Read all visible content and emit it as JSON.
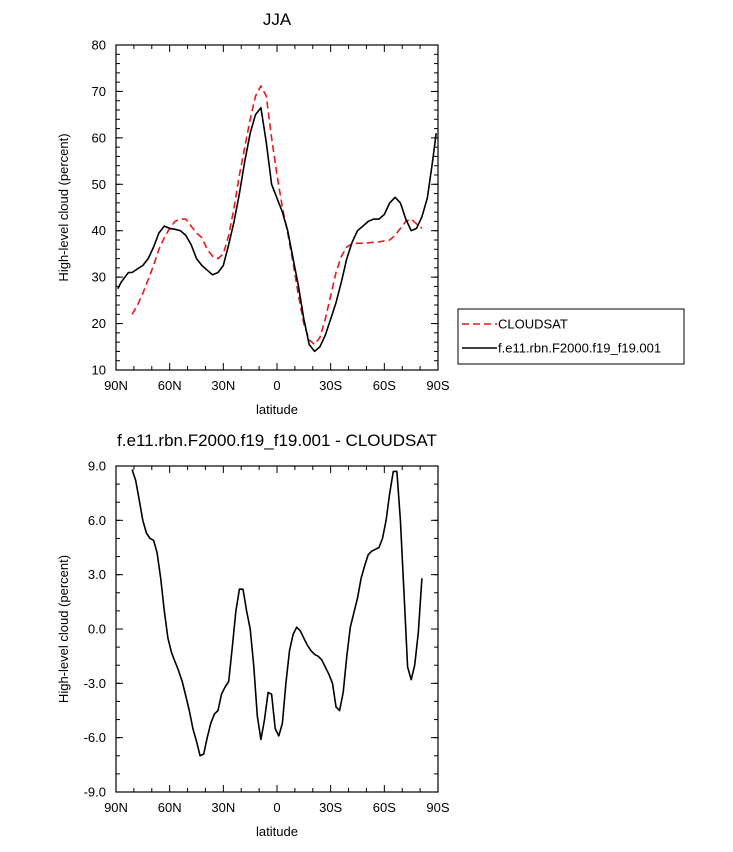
{
  "chart_data": [
    {
      "type": "line",
      "title": "JJA",
      "xlabel": "latitude",
      "ylabel": "High-level cloud (percent)",
      "xlim": [
        90,
        -90
      ],
      "ylim": [
        10,
        80
      ],
      "x_tick_values": [
        90,
        60,
        30,
        0,
        -30,
        -60,
        -90
      ],
      "x_tick_labels": [
        "90N",
        "60N",
        "30N",
        "0",
        "30S",
        "60S",
        "90S"
      ],
      "y_tick_values": [
        10,
        20,
        30,
        40,
        50,
        60,
        70,
        80
      ],
      "y_tick_labels": [
        "10",
        "20",
        "30",
        "40",
        "50",
        "60",
        "70",
        "80"
      ],
      "legend": "right",
      "series": [
        {
          "name": "CLOUDSAT",
          "color": "#e41a1c",
          "style": "dashed",
          "x": [
            81,
            78,
            75,
            72,
            69,
            66,
            63,
            60,
            57,
            54,
            51,
            48,
            45,
            42,
            39,
            36,
            33,
            30,
            27,
            24,
            21,
            18,
            15,
            12,
            9,
            6,
            3,
            0,
            -3,
            -6,
            -9,
            -12,
            -15,
            -18,
            -21,
            -24,
            -27,
            -30,
            -33,
            -36,
            -39,
            -42,
            -45,
            -48,
            -51,
            -54,
            -57,
            -60,
            -63,
            -66,
            -69,
            -72,
            -75,
            -78,
            -81
          ],
          "y": [
            22,
            24,
            26.5,
            29.5,
            32.5,
            36,
            38.5,
            40.5,
            42,
            42.5,
            42.5,
            41,
            39.5,
            38.5,
            36,
            34.5,
            34,
            35,
            39,
            45,
            52,
            58,
            64,
            69,
            71.2,
            69,
            60,
            52,
            45,
            39.5,
            33,
            26,
            20,
            16.5,
            15.5,
            17,
            21,
            26,
            31,
            34.5,
            36.5,
            37.2,
            37.3,
            37.3,
            37.4,
            37.5,
            37.6,
            37.8,
            38,
            39,
            40.5,
            42,
            42.5,
            41.5,
            40.5
          ]
        },
        {
          "name": "f.e11.rbn.F2000.f19_f19.001",
          "color": "#000000",
          "style": "solid",
          "x": [
            89,
            87,
            85,
            83,
            81,
            78,
            75,
            72,
            69,
            66,
            63,
            60,
            57,
            54,
            51,
            48,
            45,
            42,
            39,
            36,
            33,
            30,
            27,
            24,
            21,
            18,
            15,
            12,
            9,
            6,
            3,
            0,
            -3,
            -6,
            -9,
            -12,
            -15,
            -18,
            -21,
            -24,
            -27,
            -30,
            -33,
            -36,
            -39,
            -42,
            -45,
            -48,
            -51,
            -54,
            -57,
            -60,
            -63,
            -66,
            -69,
            -72,
            -75,
            -78,
            -81,
            -84,
            -87,
            -89
          ],
          "y": [
            27.5,
            29,
            30,
            31,
            31,
            31.8,
            32.5,
            34,
            36.5,
            39.5,
            41,
            40.5,
            40.3,
            40,
            39,
            37,
            34,
            32.5,
            31.5,
            30.5,
            31,
            32.5,
            37,
            42,
            48,
            55,
            61,
            65,
            66.5,
            59,
            50,
            47,
            44,
            40,
            34,
            28,
            21,
            15.5,
            14,
            15,
            17.5,
            21,
            24.5,
            29,
            34,
            37.5,
            40,
            41,
            42,
            42.5,
            42.5,
            43.5,
            46,
            47.2,
            46,
            42.5,
            40,
            40.5,
            43,
            47,
            55,
            61
          ]
        }
      ]
    },
    {
      "type": "line",
      "title": "f.e11.rbn.F2000.f19_f19.001 - CLOUDSAT",
      "xlabel": "latitude",
      "ylabel": "High-level cloud (percent)",
      "xlim": [
        90,
        -90
      ],
      "ylim": [
        -9,
        9
      ],
      "x_tick_values": [
        90,
        60,
        30,
        0,
        -30,
        -60,
        -90
      ],
      "x_tick_labels": [
        "90N",
        "60N",
        "30N",
        "0",
        "30S",
        "60S",
        "90S"
      ],
      "y_tick_values": [
        9,
        6,
        3,
        0,
        -3,
        -6,
        -9
      ],
      "y_tick_labels": [
        "9.0",
        "6.0",
        "3.0",
        "0.0",
        "-3.0",
        "-6.0",
        "-9.0"
      ],
      "series": [
        {
          "color": "#000000",
          "style": "solid",
          "x": [
            81,
            79,
            77,
            75,
            73,
            71,
            69,
            67,
            65,
            63,
            61,
            59,
            57,
            55,
            53,
            51,
            49,
            47,
            45,
            43,
            41,
            39,
            37,
            35,
            33,
            31,
            29,
            27,
            25,
            23,
            21,
            19,
            17,
            15,
            13,
            11,
            9,
            7,
            5,
            3,
            1,
            -1,
            -3,
            -5,
            -7,
            -9,
            -11,
            -13,
            -15,
            -17,
            -19,
            -21,
            -23,
            -25,
            -27,
            -29,
            -31,
            -33,
            -35,
            -37,
            -39,
            -41,
            -43,
            -45,
            -47,
            -49,
            -51,
            -53,
            -55,
            -57,
            -59,
            -61,
            -63,
            -65,
            -67,
            -69,
            -71,
            -73,
            -75,
            -77,
            -79,
            -81
          ],
          "y": [
            8.8,
            8.2,
            7.1,
            6.0,
            5.3,
            5.0,
            4.9,
            4.2,
            2.8,
            1.0,
            -0.5,
            -1.3,
            -1.8,
            -2.3,
            -2.9,
            -3.7,
            -4.5,
            -5.5,
            -6.2,
            -7.0,
            -6.9,
            -6.0,
            -5.2,
            -4.7,
            -4.5,
            -3.6,
            -3.2,
            -2.9,
            -1.0,
            1.0,
            2.2,
            2.2,
            1.0,
            0.0,
            -2.0,
            -4.8,
            -6.1,
            -5.0,
            -3.5,
            -3.6,
            -5.5,
            -5.9,
            -5.2,
            -3.0,
            -1.2,
            -0.3,
            0.1,
            -0.1,
            -0.5,
            -0.9,
            -1.2,
            -1.4,
            -1.5,
            -1.7,
            -2.1,
            -2.5,
            -3.0,
            -4.3,
            -4.5,
            -3.5,
            -1.5,
            0.1,
            0.9,
            1.7,
            2.8,
            3.5,
            4.1,
            4.3,
            4.4,
            4.5,
            5.0,
            6.0,
            7.5,
            8.7,
            8.7,
            6.0,
            2.0,
            -2.1,
            -2.8,
            -2.0,
            -0.2,
            2.8
          ]
        }
      ]
    }
  ]
}
